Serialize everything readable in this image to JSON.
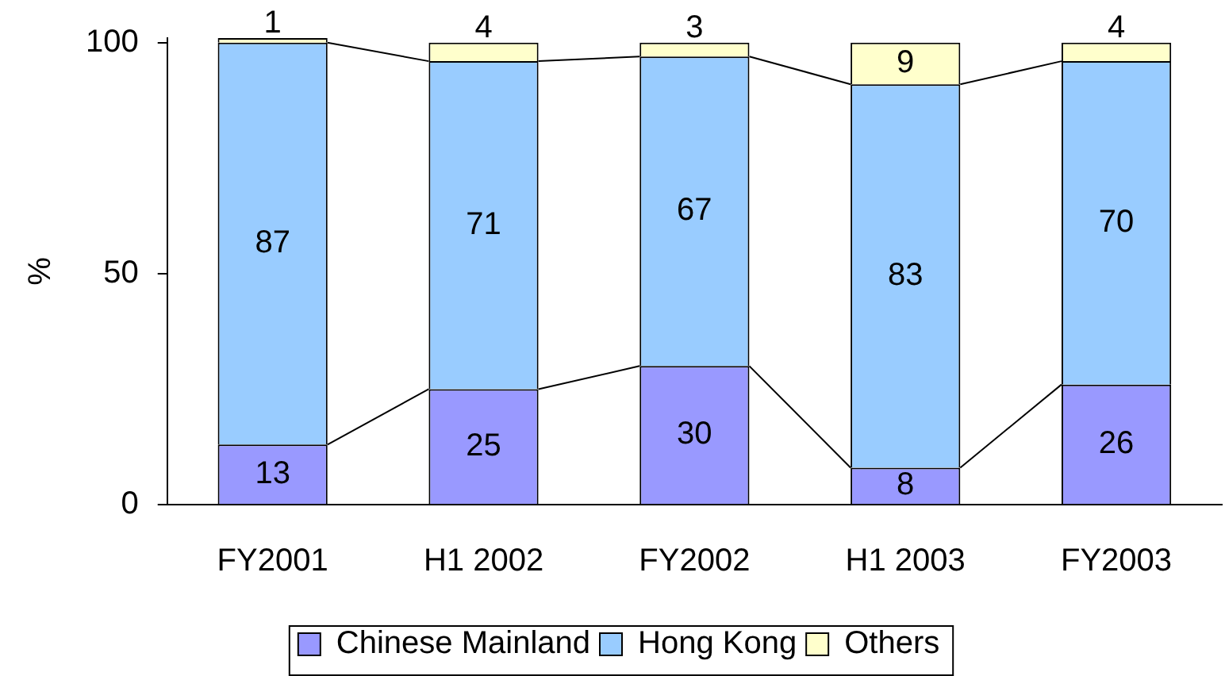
{
  "chart_data": {
    "type": "bar",
    "stacked": true,
    "ylabel": "%",
    "categories": [
      "FY2001",
      "H1 2002",
      "FY2002",
      "H1 2003",
      "FY2003"
    ],
    "series": [
      {
        "name": "Chinese Mainland",
        "color": "#9999ff",
        "values": [
          13,
          25,
          30,
          8,
          26
        ]
      },
      {
        "name": "Hong Kong",
        "color": "#99ccff",
        "values": [
          87,
          71,
          67,
          83,
          70
        ]
      },
      {
        "name": "Others",
        "color": "#ffffcc",
        "values": [
          1,
          4,
          3,
          9,
          4
        ]
      }
    ],
    "ylim": [
      0,
      101
    ],
    "yticks": [
      0,
      50,
      100
    ],
    "data_labels": true,
    "legend": "bottom",
    "grid": false
  }
}
